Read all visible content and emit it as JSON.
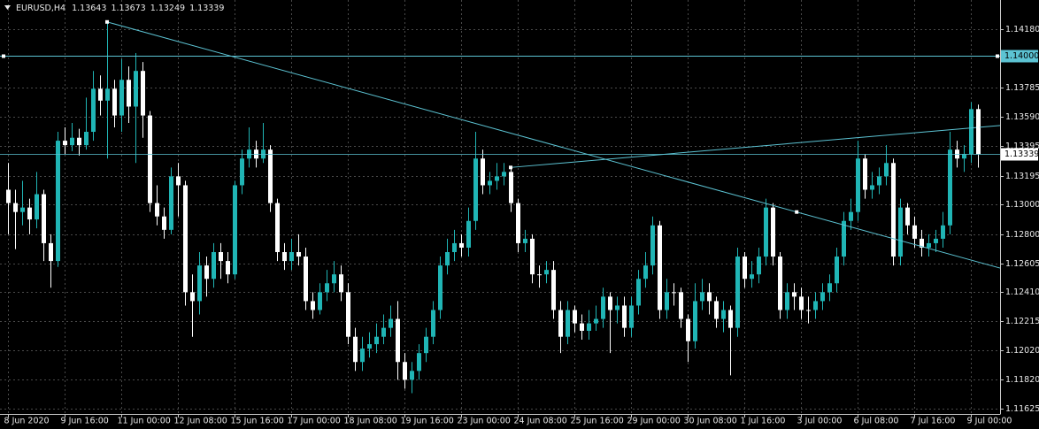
{
  "chart_data": {
    "type": "candlestick",
    "symbol": "EURUSD,H4",
    "bull_color": "#20b5b5",
    "bear_color": "#ffffff",
    "line_color": "#5cc3d3",
    "grid": true,
    "ylim": [
      1.1159,
      1.1433
    ],
    "yticks": [
      {
        "value": 1.1418,
        "label": "1.14180"
      },
      {
        "value": 1.13785,
        "label": "1.13785"
      },
      {
        "value": 1.1359,
        "label": "1.13590"
      },
      {
        "value": 1.13395,
        "label": "1.13395"
      },
      {
        "value": 1.13195,
        "label": "1.13195"
      },
      {
        "value": 1.13,
        "label": "1.13000"
      },
      {
        "value": 1.128,
        "label": "1.12800"
      },
      {
        "value": 1.12605,
        "label": "1.12605"
      },
      {
        "value": 1.1241,
        "label": "1.12410"
      },
      {
        "value": 1.12215,
        "label": "1.12215"
      },
      {
        "value": 1.1202,
        "label": "1.12020"
      },
      {
        "value": 1.1182,
        "label": "1.11820"
      },
      {
        "value": 1.11625,
        "label": "1.11625"
      }
    ],
    "categories": [
      "8 Jun 2020",
      null,
      null,
      null,
      null,
      null,
      null,
      null,
      "9 Jun 16:00",
      null,
      null,
      null,
      null,
      null,
      null,
      null,
      "11 Jun 00:00",
      null,
      null,
      null,
      null,
      null,
      null,
      null,
      "12 Jun 08:00",
      null,
      null,
      null,
      null,
      null,
      null,
      null,
      "15 Jun 16:00",
      null,
      null,
      null,
      null,
      null,
      null,
      null,
      "17 Jun 00:00",
      null,
      null,
      null,
      null,
      null,
      null,
      null,
      "18 Jun 08:00",
      null,
      null,
      null,
      null,
      null,
      null,
      null,
      "19 Jun 16:00",
      null,
      null,
      null,
      null,
      null,
      null,
      null,
      "23 Jun 00:00",
      null,
      null,
      null,
      null,
      null,
      null,
      null,
      "24 Jun 08:00",
      null,
      null,
      null,
      null,
      null,
      null,
      null,
      "25 Jun 16:00",
      null,
      null,
      null,
      null,
      null,
      null,
      null,
      "29 Jun 00:00",
      null,
      null,
      null,
      null,
      null,
      null,
      null,
      "30 Jun 08:00",
      null,
      null,
      null,
      null,
      null,
      null,
      null,
      "1 Jul 16:00",
      null,
      null,
      null,
      null,
      null,
      null,
      null,
      "3 Jul 00:00",
      null,
      null,
      null,
      null,
      null,
      null,
      null,
      "6 Jul 08:00",
      null,
      null,
      null,
      null,
      null,
      null,
      null,
      "7 Jul 16:00",
      null,
      null,
      null,
      null,
      null,
      null,
      null,
      "9 Jul 00:00",
      null
    ],
    "open": [
      1.131,
      1.1301,
      1.1295,
      1.1298,
      1.129,
      1.1307,
      1.1274,
      1.1262,
      1.1343,
      1.134,
      1.1345,
      1.134,
      1.1349,
      1.1378,
      1.137,
      1.1378,
      1.136,
      1.1384,
      1.1366,
      1.139,
      1.136,
      1.1301,
      1.1292,
      1.1283,
      1.1319,
      1.1313,
      1.1241,
      1.1235,
      1.1259,
      1.125,
      1.1268,
      1.1262,
      1.1253,
      1.1313,
      1.1331,
      1.1337,
      1.1331,
      1.1337,
      1.1301,
      1.1268,
      1.1262,
      1.1268,
      1.1265,
      1.1235,
      1.1229,
      1.1241,
      1.1247,
      1.1253,
      1.1241,
      1.1211,
      1.1194,
      1.1203,
      1.1206,
      1.1211,
      1.1217,
      1.1223,
      1.1194,
      1.1182,
      1.1188,
      1.12,
      1.1211,
      1.1229,
      1.1259,
      1.1268,
      1.1274,
      1.1271,
      1.1289,
      1.1331,
      1.1313,
      1.1316,
      1.1319,
      1.1322,
      1.1301,
      1.1274,
      1.1277,
      1.1253,
      1.1253,
      1.1256,
      1.1229,
      1.1211,
      1.1229,
      1.122,
      1.1215,
      1.122,
      1.1223,
      1.1238,
      1.1229,
      1.1232,
      1.1217,
      1.1232,
      1.125,
      1.1259,
      1.1286,
      1.1229,
      1.1241,
      1.1241,
      1.1223,
      1.1208,
      1.1235,
      1.1241,
      1.1235,
      1.1223,
      1.1229,
      1.1217,
      1.1265,
      1.125,
      1.1253,
      1.1265,
      1.1298,
      1.1265,
      1.1229,
      1.1241,
      1.1238,
      1.1229,
      1.1229,
      1.1235,
      1.1241,
      1.1247,
      1.1265,
      1.1289,
      1.1295,
      1.1331,
      1.131,
      1.1313,
      1.1319,
      1.1328,
      1.1265,
      1.1298,
      1.1286,
      1.1277,
      1.1271,
      1.1274,
      1.1277,
      1.1286,
      1.1337,
      1.1331,
      1.1334,
      1.13643
    ],
    "high": [
      1.1328,
      1.131,
      1.1316,
      1.1304,
      1.1322,
      1.131,
      1.128,
      1.1349,
      1.1352,
      1.1355,
      1.1351,
      1.1372,
      1.139,
      1.1387,
      1.1423,
      1.1384,
      1.1398,
      1.1393,
      1.1402,
      1.1396,
      1.1363,
      1.1313,
      1.1298,
      1.1325,
      1.1328,
      1.1316,
      1.1253,
      1.1268,
      1.1265,
      1.1274,
      1.1274,
      1.1268,
      1.1316,
      1.1337,
      1.1352,
      1.1343,
      1.1355,
      1.134,
      1.1304,
      1.1274,
      1.1277,
      1.128,
      1.1271,
      1.1241,
      1.1247,
      1.1256,
      1.1262,
      1.1259,
      1.1247,
      1.1217,
      1.1211,
      1.1214,
      1.122,
      1.1226,
      1.1232,
      1.1235,
      1.12,
      1.1194,
      1.1206,
      1.1217,
      1.1235,
      1.1265,
      1.1277,
      1.1283,
      1.128,
      1.1298,
      1.1349,
      1.1337,
      1.1322,
      1.1328,
      1.1328,
      1.1325,
      1.1304,
      1.1283,
      1.128,
      1.1259,
      1.1262,
      1.1262,
      1.1235,
      1.1235,
      1.1232,
      1.1226,
      1.1229,
      1.1232,
      1.1244,
      1.1241,
      1.1238,
      1.1238,
      1.1238,
      1.1256,
      1.1268,
      1.1292,
      1.1289,
      1.125,
      1.1247,
      1.1244,
      1.1226,
      1.1247,
      1.125,
      1.1247,
      1.1238,
      1.1235,
      1.1232,
      1.1271,
      1.1268,
      1.1262,
      1.1271,
      1.1304,
      1.1301,
      1.1268,
      1.1247,
      1.1247,
      1.1244,
      1.1238,
      1.1241,
      1.1247,
      1.1253,
      1.1271,
      1.1295,
      1.1304,
      1.1343,
      1.1334,
      1.1322,
      1.1325,
      1.134,
      1.1331,
      1.1304,
      1.1301,
      1.1292,
      1.1283,
      1.128,
      1.1283,
      1.1295,
      1.1349,
      1.1343,
      1.134,
      1.1369,
      1.13673
    ],
    "low": [
      1.128,
      1.127,
      1.1286,
      1.128,
      1.1284,
      1.1262,
      1.1244,
      1.1258,
      1.1334,
      1.1336,
      1.1333,
      1.1337,
      1.1343,
      1.136,
      1.1331,
      1.1352,
      1.1349,
      1.1355,
      1.1328,
      1.1345,
      1.1295,
      1.1286,
      1.1277,
      1.128,
      1.1292,
      1.1232,
      1.1211,
      1.1226,
      1.1238,
      1.1244,
      1.125,
      1.1247,
      1.125,
      1.1307,
      1.1325,
      1.1325,
      1.1328,
      1.1295,
      1.1262,
      1.1256,
      1.1256,
      1.1259,
      1.1229,
      1.1223,
      1.1226,
      1.1235,
      1.1241,
      1.1235,
      1.1206,
      1.1188,
      1.1188,
      1.1197,
      1.12,
      1.1206,
      1.1211,
      1.1182,
      1.1176,
      1.1173,
      1.1182,
      1.1194,
      1.1206,
      1.1223,
      1.1253,
      1.1262,
      1.1265,
      1.1265,
      1.1283,
      1.1307,
      1.1307,
      1.131,
      1.1313,
      1.1295,
      1.1268,
      1.1268,
      1.1247,
      1.1244,
      1.1247,
      1.1223,
      1.12,
      1.1206,
      1.1214,
      1.1209,
      1.1209,
      1.1215,
      1.1217,
      1.12,
      1.122,
      1.1211,
      1.1211,
      1.1226,
      1.1244,
      1.1253,
      1.1223,
      1.1223,
      1.1232,
      1.1217,
      1.1194,
      1.1203,
      1.1229,
      1.1226,
      1.1217,
      1.1214,
      1.1185,
      1.1211,
      1.1244,
      1.1244,
      1.1247,
      1.1259,
      1.1259,
      1.1223,
      1.1223,
      1.1229,
      1.1223,
      1.122,
      1.1223,
      1.1229,
      1.1235,
      1.1241,
      1.1259,
      1.1283,
      1.1289,
      1.1304,
      1.1304,
      1.1307,
      1.1313,
      1.1259,
      1.1259,
      1.128,
      1.1271,
      1.1265,
      1.1265,
      1.1268,
      1.1271,
      1.128,
      1.1325,
      1.1322,
      1.1328,
      1.13249
    ],
    "close": [
      1.1301,
      1.1295,
      1.1298,
      1.129,
      1.1307,
      1.1274,
      1.1262,
      1.1343,
      1.134,
      1.1345,
      1.134,
      1.1349,
      1.1378,
      1.137,
      1.1378,
      1.136,
      1.1384,
      1.1366,
      1.139,
      1.136,
      1.1301,
      1.1292,
      1.1283,
      1.1319,
      1.1313,
      1.1241,
      1.1235,
      1.1259,
      1.125,
      1.1268,
      1.1262,
      1.1253,
      1.1313,
      1.1331,
      1.1337,
      1.1331,
      1.1337,
      1.1301,
      1.1268,
      1.1262,
      1.1268,
      1.1265,
      1.1235,
      1.1229,
      1.1241,
      1.1247,
      1.1253,
      1.1241,
      1.1211,
      1.1194,
      1.1203,
      1.1206,
      1.1211,
      1.1217,
      1.1223,
      1.1194,
      1.1182,
      1.1188,
      1.12,
      1.1211,
      1.1229,
      1.1259,
      1.1268,
      1.1274,
      1.1271,
      1.1289,
      1.1331,
      1.1313,
      1.1316,
      1.1319,
      1.1322,
      1.1301,
      1.1274,
      1.1277,
      1.1253,
      1.1253,
      1.1256,
      1.1229,
      1.1211,
      1.1229,
      1.122,
      1.1215,
      1.122,
      1.1223,
      1.1238,
      1.1229,
      1.1232,
      1.1217,
      1.1232,
      1.125,
      1.1259,
      1.1286,
      1.1229,
      1.1241,
      1.1241,
      1.1223,
      1.1208,
      1.1235,
      1.1241,
      1.1235,
      1.1223,
      1.1229,
      1.1217,
      1.1265,
      1.125,
      1.1253,
      1.1265,
      1.1298,
      1.1265,
      1.1229,
      1.1241,
      1.1238,
      1.1229,
      1.1229,
      1.1235,
      1.1241,
      1.1247,
      1.1265,
      1.1289,
      1.1295,
      1.1331,
      1.131,
      1.1313,
      1.1319,
      1.1328,
      1.1265,
      1.1298,
      1.1286,
      1.1277,
      1.1271,
      1.1274,
      1.1277,
      1.1286,
      1.1337,
      1.1331,
      1.1334,
      1.13643,
      1.13339
    ],
    "hlines": [
      {
        "value": 1.14,
        "label": "1.14000"
      }
    ],
    "trendlines": [
      {
        "from": [
          14,
          1.1423
        ],
        "to": [
          111.4,
          1.1295
        ]
      },
      {
        "from": [
          71,
          1.1325
        ],
        "to": [
          137,
          1.1352
        ]
      }
    ]
  }
}
